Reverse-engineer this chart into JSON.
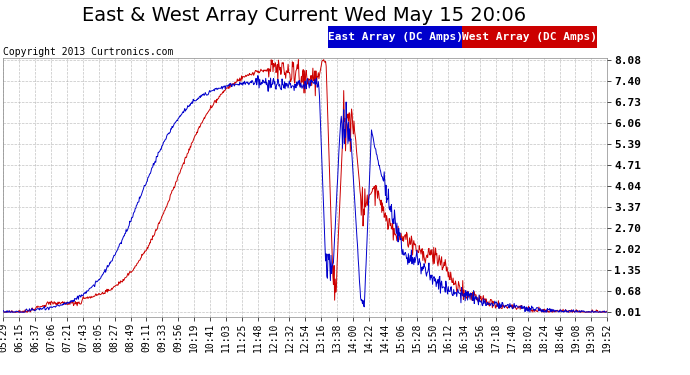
{
  "title": "East & West Array Current Wed May 15 20:06",
  "copyright": "Copyright 2013 Curtronics.com",
  "legend_east": "East Array (DC Amps)",
  "legend_west": "West Array (DC Amps)",
  "east_color": "#0000CC",
  "west_color": "#CC0000",
  "background_color": "#FFFFFF",
  "plot_background": "#FFFFFF",
  "grid_color": "#AAAAAA",
  "yticks": [
    0.01,
    0.68,
    1.35,
    2.02,
    2.7,
    3.37,
    4.04,
    4.71,
    5.39,
    6.06,
    6.73,
    7.4,
    8.08
  ],
  "ymin": 0.01,
  "ymax": 8.08,
  "xtick_labels": [
    "05:29",
    "06:15",
    "06:37",
    "07:06",
    "07:21",
    "07:43",
    "08:05",
    "08:27",
    "08:49",
    "09:11",
    "09:33",
    "09:56",
    "10:19",
    "10:41",
    "11:03",
    "11:25",
    "11:48",
    "12:10",
    "12:32",
    "12:54",
    "13:16",
    "13:38",
    "14:00",
    "14:22",
    "14:44",
    "15:06",
    "15:28",
    "15:50",
    "16:12",
    "16:34",
    "16:56",
    "17:18",
    "17:40",
    "18:02",
    "18:24",
    "18:46",
    "19:08",
    "19:30",
    "19:52"
  ],
  "title_fontsize": 14,
  "copyright_fontsize": 7,
  "legend_fontsize": 8,
  "tick_fontsize": 7
}
